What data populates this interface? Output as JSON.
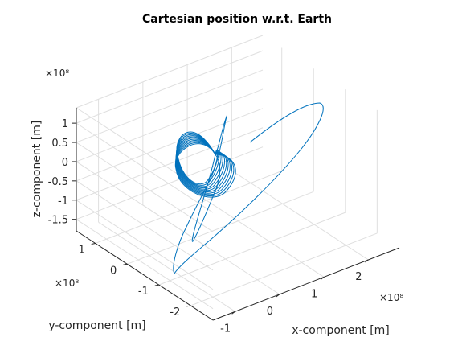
{
  "chart_data": {
    "type": "line",
    "title": "Cartesian position w.r.t. Earth",
    "xlabel": "x-component [m]",
    "ylabel": "y-component [m]",
    "zlabel": "z-component [m]",
    "x_exponent": "×10⁸",
    "y_exponent": "×10⁸",
    "z_exponent": "×10⁸",
    "x_ticks": [
      "-1",
      "0",
      "1",
      "2"
    ],
    "y_ticks": [
      "1",
      "0",
      "-1",
      "-2"
    ],
    "z_ticks": [
      "1",
      "0.5",
      "0",
      "-0.5",
      "-1",
      "-1.5"
    ],
    "xlim": [
      -1.5,
      2.7
    ],
    "ylim": [
      -2.7,
      1.6
    ],
    "zlim": [
      -1.8,
      1.4
    ],
    "grid": true,
    "series_color": "#0072BD",
    "series": [
      {
        "description": "trajectory: departure arc, outer ellipse, spiral of smaller loops around Earth",
        "x": [
          1.1,
          1.25,
          1.5,
          1.8,
          2.05,
          2.15,
          2.1,
          1.9,
          1.55,
          1.1,
          0.6,
          0.15,
          -0.25,
          -0.55,
          -0.8,
          -0.9
        ],
        "y": [
          1.4,
          1.45,
          1.4,
          1.2,
          0.9,
          0.55,
          0.2,
          -0.2,
          -0.6,
          -1.0,
          -1.4,
          -1.75,
          -2.05,
          -2.25,
          -2.35,
          -2.4
        ],
        "z": [
          0.3,
          0.45,
          0.65,
          0.85,
          1.05,
          1.2,
          1.15,
          0.9,
          0.5,
          0.0,
          -0.5,
          -1.0,
          -1.5,
          -1.8,
          -1.9,
          -1.85
        ]
      }
    ]
  }
}
